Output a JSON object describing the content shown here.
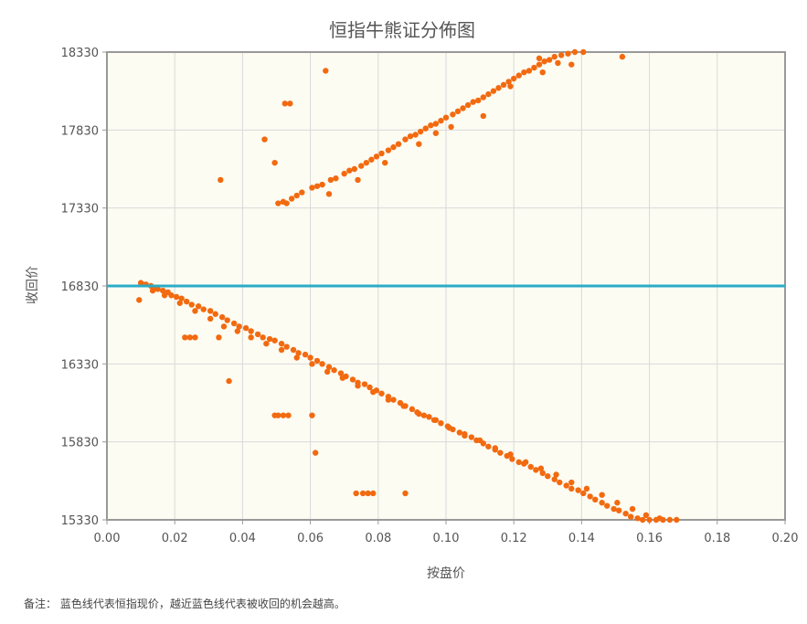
{
  "note": "备注：  蓝色线代表恒指现价，越近蓝色线代表被收回的机会越高。",
  "colors": {
    "point": "#F26A10",
    "line": "#2AACC8",
    "plot_bg": "#FDFCF3",
    "grid": "#D9D9D9",
    "frame": "#999999"
  },
  "chart_data": {
    "type": "scatter",
    "title": "恒指牛熊证分佈图",
    "xlabel": "按盘价",
    "ylabel": "收回价",
    "xlim": [
      0.0,
      0.2
    ],
    "ylim": [
      15330,
      18330
    ],
    "xticks": [
      "0.00",
      "0.02",
      "0.04",
      "0.06",
      "0.08",
      "0.10",
      "0.12",
      "0.14",
      "0.16",
      "0.18",
      "0.20"
    ],
    "yticks": [
      "15330",
      "15830",
      "16330",
      "16830",
      "17330",
      "17830",
      "18330"
    ],
    "grid": true,
    "reference_line": {
      "value": 16830,
      "orientation": "horizontal"
    },
    "series": [
      {
        "points": [
          [
            0.0505,
            17360
          ],
          [
            0.052,
            17370
          ],
          [
            0.053,
            17360
          ],
          [
            0.0545,
            17390
          ],
          [
            0.056,
            17410
          ],
          [
            0.0575,
            17430
          ],
          [
            0.0605,
            17460
          ],
          [
            0.062,
            17470
          ],
          [
            0.0635,
            17480
          ],
          [
            0.066,
            17510
          ],
          [
            0.0675,
            17520
          ],
          [
            0.07,
            17550
          ],
          [
            0.0715,
            17570
          ],
          [
            0.073,
            17580
          ],
          [
            0.075,
            17600
          ],
          [
            0.0765,
            17620
          ],
          [
            0.078,
            17640
          ],
          [
            0.0795,
            17660
          ],
          [
            0.081,
            17680
          ],
          [
            0.083,
            17700
          ],
          [
            0.0845,
            17720
          ],
          [
            0.086,
            17740
          ],
          [
            0.088,
            17770
          ],
          [
            0.0895,
            17790
          ],
          [
            0.091,
            17800
          ],
          [
            0.0925,
            17820
          ],
          [
            0.094,
            17840
          ],
          [
            0.0955,
            17860
          ],
          [
            0.097,
            17870
          ],
          [
            0.0985,
            17890
          ],
          [
            0.1,
            17910
          ],
          [
            0.102,
            17930
          ],
          [
            0.1035,
            17950
          ],
          [
            0.105,
            17970
          ],
          [
            0.1065,
            17990
          ],
          [
            0.108,
            18010
          ],
          [
            0.1095,
            18020
          ],
          [
            0.111,
            18040
          ],
          [
            0.1125,
            18060
          ],
          [
            0.114,
            18080
          ],
          [
            0.1155,
            18100
          ],
          [
            0.117,
            18120
          ],
          [
            0.1185,
            18140
          ],
          [
            0.12,
            18160
          ],
          [
            0.1215,
            18180
          ],
          [
            0.123,
            18200
          ],
          [
            0.1245,
            18210
          ],
          [
            0.126,
            18230
          ],
          [
            0.1275,
            18250
          ],
          [
            0.129,
            18270
          ],
          [
            0.1305,
            18280
          ],
          [
            0.132,
            18300
          ],
          [
            0.134,
            18310
          ],
          [
            0.136,
            18320
          ],
          [
            0.138,
            18330
          ],
          [
            0.1405,
            18330
          ],
          [
            0.1275,
            18290
          ],
          [
            0.133,
            18260
          ],
          [
            0.137,
            18250
          ],
          [
            0.1285,
            18200
          ],
          [
            0.119,
            18110
          ],
          [
            0.111,
            17920
          ],
          [
            0.1015,
            17850
          ],
          [
            0.097,
            17810
          ],
          [
            0.092,
            17740
          ],
          [
            0.082,
            17620
          ],
          [
            0.074,
            17510
          ],
          [
            0.0655,
            17420
          ],
          [
            0.0495,
            17620
          ],
          [
            0.0465,
            17770
          ],
          [
            0.0525,
            18000
          ],
          [
            0.054,
            18000
          ],
          [
            0.0645,
            18210
          ],
          [
            0.152,
            18300
          ],
          [
            0.0335,
            17510
          ],
          [
            0.01,
            16850
          ],
          [
            0.0105,
            16840
          ],
          [
            0.0115,
            16840
          ],
          [
            0.013,
            16830
          ],
          [
            0.014,
            16820
          ],
          [
            0.015,
            16810
          ],
          [
            0.0165,
            16800
          ],
          [
            0.018,
            16790
          ],
          [
            0.019,
            16770
          ],
          [
            0.0205,
            16760
          ],
          [
            0.022,
            16750
          ],
          [
            0.0235,
            16730
          ],
          [
            0.025,
            16710
          ],
          [
            0.027,
            16700
          ],
          [
            0.0285,
            16680
          ],
          [
            0.0305,
            16670
          ],
          [
            0.032,
            16650
          ],
          [
            0.034,
            16630
          ],
          [
            0.0355,
            16610
          ],
          [
            0.0375,
            16590
          ],
          [
            0.039,
            16570
          ],
          [
            0.041,
            16560
          ],
          [
            0.0425,
            16540
          ],
          [
            0.0445,
            16520
          ],
          [
            0.046,
            16500
          ],
          [
            0.048,
            16490
          ],
          [
            0.0495,
            16480
          ],
          [
            0.0515,
            16460
          ],
          [
            0.053,
            16440
          ],
          [
            0.055,
            16420
          ],
          [
            0.0565,
            16400
          ],
          [
            0.0585,
            16390
          ],
          [
            0.06,
            16370
          ],
          [
            0.062,
            16350
          ],
          [
            0.0635,
            16330
          ],
          [
            0.0655,
            16310
          ],
          [
            0.067,
            16290
          ],
          [
            0.069,
            16270
          ],
          [
            0.0705,
            16250
          ],
          [
            0.0725,
            16230
          ],
          [
            0.074,
            16210
          ],
          [
            0.076,
            16200
          ],
          [
            0.0775,
            16180
          ],
          [
            0.0795,
            16160
          ],
          [
            0.081,
            16140
          ],
          [
            0.083,
            16120
          ],
          [
            0.0845,
            16100
          ],
          [
            0.0865,
            16080
          ],
          [
            0.088,
            16060
          ],
          [
            0.09,
            16040
          ],
          [
            0.0915,
            16020
          ],
          [
            0.0935,
            16000
          ],
          [
            0.095,
            15990
          ],
          [
            0.097,
            15970
          ],
          [
            0.0985,
            15950
          ],
          [
            0.1005,
            15930
          ],
          [
            0.102,
            15910
          ],
          [
            0.104,
            15890
          ],
          [
            0.1055,
            15870
          ],
          [
            0.1075,
            15860
          ],
          [
            0.109,
            15840
          ],
          [
            0.111,
            15820
          ],
          [
            0.1125,
            15800
          ],
          [
            0.1145,
            15780
          ],
          [
            0.116,
            15760
          ],
          [
            0.118,
            15740
          ],
          [
            0.1195,
            15720
          ],
          [
            0.1215,
            15700
          ],
          [
            0.123,
            15690
          ],
          [
            0.125,
            15670
          ],
          [
            0.1265,
            15650
          ],
          [
            0.1285,
            15630
          ],
          [
            0.13,
            15610
          ],
          [
            0.132,
            15590
          ],
          [
            0.1335,
            15570
          ],
          [
            0.1355,
            15550
          ],
          [
            0.137,
            15530
          ],
          [
            0.139,
            15520
          ],
          [
            0.1405,
            15500
          ],
          [
            0.1425,
            15480
          ],
          [
            0.144,
            15460
          ],
          [
            0.146,
            15440
          ],
          [
            0.1475,
            15420
          ],
          [
            0.1495,
            15400
          ],
          [
            0.151,
            15390
          ],
          [
            0.153,
            15370
          ],
          [
            0.1545,
            15350
          ],
          [
            0.1565,
            15340
          ],
          [
            0.158,
            15330
          ],
          [
            0.16,
            15330
          ],
          [
            0.162,
            15330
          ],
          [
            0.164,
            15330
          ],
          [
            0.166,
            15330
          ],
          [
            0.168,
            15330
          ],
          [
            0.0095,
            16740
          ],
          [
            0.0135,
            16800
          ],
          [
            0.017,
            16770
          ],
          [
            0.0215,
            16720
          ],
          [
            0.026,
            16670
          ],
          [
            0.0305,
            16620
          ],
          [
            0.0345,
            16570
          ],
          [
            0.0385,
            16540
          ],
          [
            0.0425,
            16500
          ],
          [
            0.047,
            16460
          ],
          [
            0.0515,
            16420
          ],
          [
            0.056,
            16370
          ],
          [
            0.0605,
            16330
          ],
          [
            0.065,
            16280
          ],
          [
            0.0695,
            16240
          ],
          [
            0.074,
            16190
          ],
          [
            0.0785,
            16150
          ],
          [
            0.083,
            16100
          ],
          [
            0.0875,
            16060
          ],
          [
            0.092,
            16010
          ],
          [
            0.0965,
            15970
          ],
          [
            0.101,
            15920
          ],
          [
            0.1055,
            15880
          ],
          [
            0.11,
            15840
          ],
          [
            0.1145,
            15790
          ],
          [
            0.119,
            15750
          ],
          [
            0.1235,
            15700
          ],
          [
            0.128,
            15660
          ],
          [
            0.1325,
            15620
          ],
          [
            0.137,
            15570
          ],
          [
            0.1415,
            15530
          ],
          [
            0.146,
            15490
          ],
          [
            0.1505,
            15440
          ],
          [
            0.155,
            15400
          ],
          [
            0.159,
            15360
          ],
          [
            0.163,
            15340
          ],
          [
            0.023,
            16500
          ],
          [
            0.0245,
            16500
          ],
          [
            0.026,
            16500
          ],
          [
            0.033,
            16500
          ],
          [
            0.036,
            16220
          ],
          [
            0.0495,
            16000
          ],
          [
            0.0505,
            16000
          ],
          [
            0.052,
            16000
          ],
          [
            0.0535,
            16000
          ],
          [
            0.0605,
            16000
          ],
          [
            0.0615,
            15760
          ],
          [
            0.0735,
            15500
          ],
          [
            0.0755,
            15500
          ],
          [
            0.077,
            15500
          ],
          [
            0.0785,
            15500
          ],
          [
            0.088,
            15500
          ]
        ]
      }
    ]
  }
}
